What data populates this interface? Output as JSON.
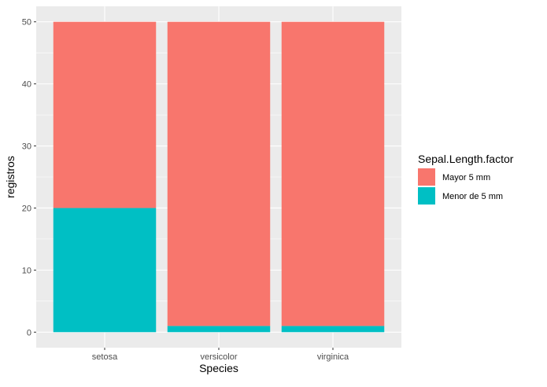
{
  "chart_data": {
    "type": "bar",
    "stacked": true,
    "categories": [
      "setosa",
      "versicolor",
      "virginica"
    ],
    "series": [
      {
        "name": "Mayor 5 mm",
        "values": [
          30,
          49,
          49
        ],
        "color": "#F8766D"
      },
      {
        "name": "Menor de 5 mm",
        "values": [
          20,
          1,
          1
        ],
        "color": "#00BFC4"
      }
    ],
    "xlabel": "Species",
    "ylabel": "registros",
    "ylim": [
      -2.5,
      52.5
    ],
    "yticks": [
      0,
      10,
      20,
      30,
      40,
      50
    ],
    "grid": true,
    "legend": {
      "title": "Sepal.Length.factor",
      "placement": "right"
    },
    "panel_background": "#EBEBEB"
  }
}
